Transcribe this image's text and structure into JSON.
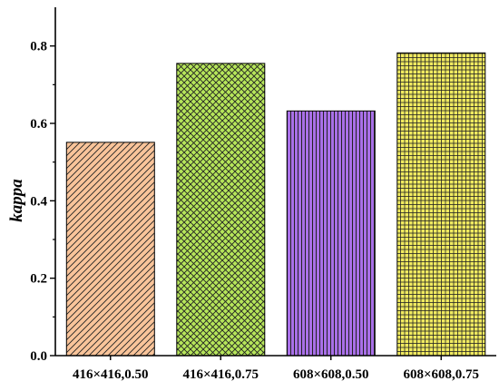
{
  "chart_data": {
    "type": "bar",
    "title": "",
    "xlabel": "",
    "ylabel": "kappa",
    "ylim": [
      0,
      0.9
    ],
    "yticks": [
      "0.0",
      "0.2",
      "0.4",
      "0.6",
      "0.8"
    ],
    "grid": false,
    "categories": [
      "416×416,0.50",
      "416×416,0.75",
      "608×608,0.50",
      "608×608,0.75"
    ],
    "values": [
      0.551,
      0.755,
      0.632,
      0.782
    ],
    "colors": [
      "#f9c49a",
      "#b6e65a",
      "#a970e8",
      "#f0ea60"
    ],
    "patterns": [
      "diagonal-hatch",
      "cross-hatch",
      "vertical-lines",
      "grid"
    ]
  }
}
